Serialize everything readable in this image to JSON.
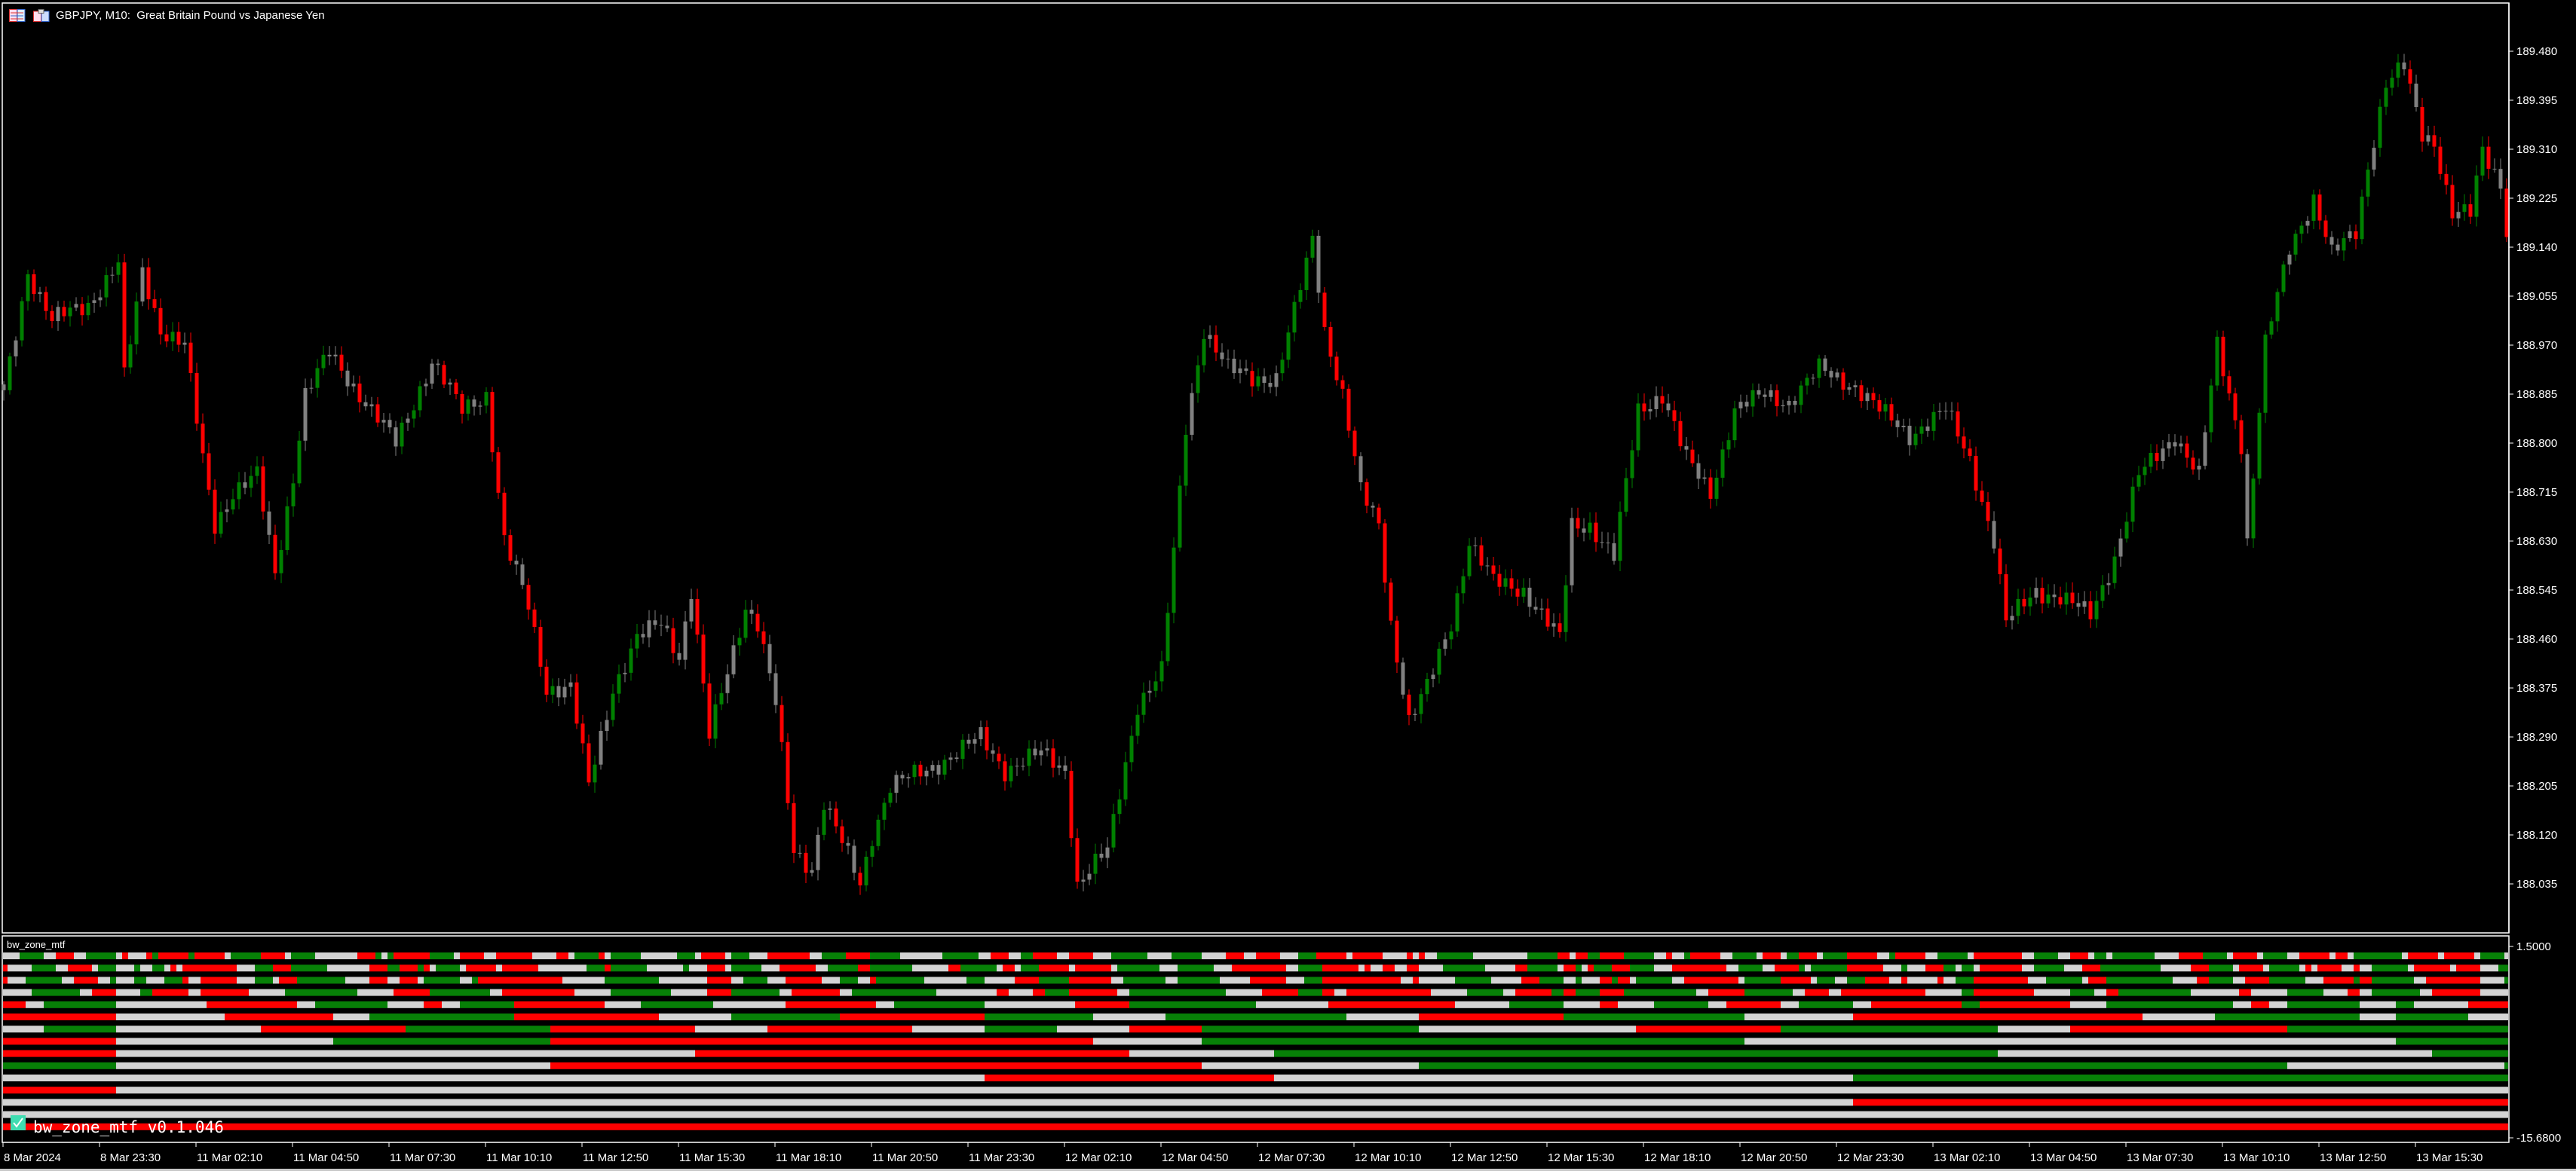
{
  "window": {
    "title": "GBPJPY, M10:  Great Britain Pound vs Japanese Yen",
    "icons": [
      "chart-list-icon",
      "chart-save-icon"
    ]
  },
  "colors": {
    "bull": "#008000",
    "bear": "#ff0000",
    "neutral": "#808080",
    "zone_green": "#078007",
    "zone_red": "#ff0000",
    "zone_gray": "#d3d3d3",
    "background": "#000000",
    "axis": "#ffffff"
  },
  "indicator": {
    "name": "bw_zone_mtf",
    "version_label": "bw_zone_mtf v0.1.046",
    "axis_top": "1.5000",
    "axis_bottom": "-15.6800",
    "rows": [
      "W3 G7 W9 R12 W14 G19 W20 R21 W24 R25 G26 R31 G32 R37 W38 G43 R47 W48 G52 W59 R62 G63 W64 G65 R71 G75 W76 R80 W82 R88 W92 R94 W95 G99 R100 W101 G106 W112 G115 W116 R120 W121 G124 W127 R134 W136 G140 R144 G149 W156 G162 W164 R167 W169 G171 R175 W177 R181 W184 G190 W194 G199 W203 R206 W208 R212 W215 G218 R223 W224 R229 W233 R234 W235 R236 W238 G244 W253 G258 R260 W261 R263 G265 R269 G274 W276 R277 W279 G280 R285 W287 G291 W292 R295 W296 G298 R301 W302 G306 R311 W313 G314 R319 W321 G326 W327 R335 W337 G341 W343 R346 W347 G349 W350 G357 W361 R365 G369 W370 R374 W375 G379 W381 R386 W387 R389 W390 G398 W399 R404 W405 R410 W411 G415 W416",
      "R1 W5 G9 W11 R15 W16 G19 W22 G23 W25 G27 W28 R29 W30 R39 W42 G45 R48 G54 W61 R64 G66 R69 G70 R71 W72 G76 W77 R82 W83 R89 W97 G100 R101 G107 W113 G114 W117 R120 W121 G126 W129 R135 W137 G142 R144 G151 W157 R159 G165 W166 R168 W169 G172 R177 W178 R184 W185 G192 W195 G201 W204 R213 W215 G219 R225 W226 R227 W229 R231 W233 R235 W239 G246 W251 R253 G258 W259 R261 G262 W263 R264 G267 R270 G274 W277 R286 W288 G292 W294 R298 G299 W300 G306 R312 W315 G316 W319 R322 G324 W325 G327 W328 R335 W337 G342 W345 R348 G358 W363 R366 G370 W371 R375 W376 G381 W382 R383 W384 R388 W390 R391 W393 G399 W400 R406 W407 R411 W414 G416",
      "R1 W4 G10 W12 R16 W18 G19 W22 G24 W27 G30 R31 W33 R39 W42 G45 W46 R49 G57 W61 R64 W66 R69 W70 G76 W78 G79 R93 W100 G109 W117 R121 W123 G127 W130 R136 W139 G142 W144 R145 G153 W160 G163 W168 R172 G177 R184 W186 G193 W195 G202 W207 R213 W216 G219 R232 W234 R235 W241 G247 W252 R255 G259 W261 G262 W265 R267 G268 R270 W271 G277 W279 R288 W289 G295 R300 W301 G304 W306 G309 R313 W315 R316 W321 R322 W324 G327 R336 W339 G345 W346 R349 G360 W364 R366 G370 W372 R376 G382 W385 R390 G391 R393 G400 W402 R411 W415 G416",
      "W5 G13 W15 R19 W23 G25 R31 W33 R41 W47 G59 W65 R71 G81 W83 R95 W101 G111 W117 R121 G129 W131 R139 W141 G155 W165 R167 W171 R173 G177 R185 W187 G203 W209 R215 G219 R221 W223 R237 W243 G249 W251 R257 G259 R261 G265 R269 G281 W283 R289 G297 W299 R303 W305 R319 W325 G327 R337 W343 G347 W349 R351 G363 W371 R373 W379 G385 W389 R391 W393 G401 W403 R411 W416",
      "R4 W7 G19 W34 R49 W52 G64 W70 R73 W76 G85 R100 W106 G118 W130 R145 W148 G163 W178 R187 G208 W220 R241 W250 G259 W265 R268 W274 G283 W286 R295 W298 G307 W310 R325 G328 R343 W349 G370 W373 R376 W379 G391 W397 G400 W409 R416",
      "R19 W37 R55 W61 G85 R109 W121 G139 R163 G181 W193 G223 W235 R259 G289 W307 R355 W367 G391 W397 G409 W416",
      "W7 G19 W43 R67 G91 R115 W127 R151 W163 G175 W187 R199 G235 W271 R295 G331 W343 R379 G416",
      "R19 W55 G91 R181 W199 G289 W397 G416",
      "R19 W115 R187 W211 G331 W403 G416",
      "G19 W91 R199 W235 G379 W415 G416",
      "W163 R211 W307 G416",
      "R19 W416",
      "W307 R416",
      "W416",
      "R416"
    ]
  },
  "chart_data": {
    "type": "candlestick",
    "symbol": "GBPJPY",
    "timeframe": "M10",
    "candle_count": 416,
    "ylim": [
      187.956,
      189.551
    ],
    "y_ticks": [
      "189.480",
      "189.395",
      "189.310",
      "189.225",
      "189.140",
      "189.055",
      "188.970",
      "188.885",
      "188.800",
      "188.715",
      "188.630",
      "188.545",
      "188.460",
      "188.375",
      "188.290",
      "188.205",
      "188.120",
      "188.035"
    ],
    "x_tick_every_candles": 16,
    "x_ticks": [
      "8 Mar 2024",
      "8 Mar 23:30",
      "11 Mar 02:10",
      "11 Mar 04:50",
      "11 Mar 07:30",
      "11 Mar 10:10",
      "11 Mar 12:50",
      "11 Mar 15:30",
      "11 Mar 18:10",
      "11 Mar 20:50",
      "11 Mar 23:30",
      "12 Mar 02:10",
      "12 Mar 04:50",
      "12 Mar 07:30",
      "12 Mar 10:10",
      "12 Mar 12:50",
      "12 Mar 15:30",
      "12 Mar 18:10",
      "12 Mar 20:50",
      "12 Mar 23:30",
      "13 Mar 02:10",
      "13 Mar 04:50",
      "13 Mar 07:30",
      "13 Mar 10:10",
      "13 Mar 12:50",
      "13 Mar 15:30"
    ],
    "close_keypoints": [
      [
        0,
        188.885
      ],
      [
        4,
        189.098
      ],
      [
        8,
        189.013
      ],
      [
        14,
        189.041
      ],
      [
        19,
        189.112
      ],
      [
        20,
        188.913
      ],
      [
        23,
        189.098
      ],
      [
        26,
        188.998
      ],
      [
        30,
        188.97
      ],
      [
        33,
        188.772
      ],
      [
        35,
        188.658
      ],
      [
        38,
        188.715
      ],
      [
        42,
        188.743
      ],
      [
        45,
        188.573
      ],
      [
        48,
        188.743
      ],
      [
        50,
        188.885
      ],
      [
        54,
        188.956
      ],
      [
        59,
        188.885
      ],
      [
        65,
        188.8
      ],
      [
        71,
        188.942
      ],
      [
        76,
        188.857
      ],
      [
        80,
        188.885
      ],
      [
        83,
        188.63
      ],
      [
        87,
        188.517
      ],
      [
        90,
        188.375
      ],
      [
        94,
        188.375
      ],
      [
        97,
        188.205
      ],
      [
        101,
        188.375
      ],
      [
        105,
        188.46
      ],
      [
        109,
        188.488
      ],
      [
        112,
        188.432
      ],
      [
        114,
        188.545
      ],
      [
        117,
        188.29
      ],
      [
        120,
        188.403
      ],
      [
        123,
        188.517
      ],
      [
        125,
        188.488
      ],
      [
        128,
        188.347
      ],
      [
        131,
        188.092
      ],
      [
        134,
        188.063
      ],
      [
        136,
        188.177
      ],
      [
        142,
        188.035
      ],
      [
        144,
        188.12
      ],
      [
        147,
        188.205
      ],
      [
        153,
        188.233
      ],
      [
        158,
        188.262
      ],
      [
        162,
        188.29
      ],
      [
        166,
        188.233
      ],
      [
        172,
        188.262
      ],
      [
        176,
        188.233
      ],
      [
        178,
        188.035
      ],
      [
        183,
        188.092
      ],
      [
        188,
        188.347
      ],
      [
        192,
        188.403
      ],
      [
        195,
        188.715
      ],
      [
        196,
        188.828
      ],
      [
        199,
        188.998
      ],
      [
        203,
        188.928
      ],
      [
        207,
        188.913
      ],
      [
        211,
        188.913
      ],
      [
        214,
        189.027
      ],
      [
        217,
        189.154
      ],
      [
        219,
        188.998
      ],
      [
        222,
        188.885
      ],
      [
        225,
        188.715
      ],
      [
        228,
        188.658
      ],
      [
        230,
        188.488
      ],
      [
        233,
        188.318
      ],
      [
        236,
        188.375
      ],
      [
        240,
        188.488
      ],
      [
        243,
        188.63
      ],
      [
        247,
        188.559
      ],
      [
        252,
        188.545
      ],
      [
        258,
        188.46
      ],
      [
        260,
        188.658
      ],
      [
        263,
        188.658
      ],
      [
        267,
        188.602
      ],
      [
        271,
        188.857
      ],
      [
        275,
        188.885
      ],
      [
        279,
        188.772
      ],
      [
        283,
        188.715
      ],
      [
        287,
        188.857
      ],
      [
        292,
        188.885
      ],
      [
        296,
        188.871
      ],
      [
        301,
        188.928
      ],
      [
        307,
        188.899
      ],
      [
        311,
        188.857
      ],
      [
        316,
        188.814
      ],
      [
        322,
        188.857
      ],
      [
        326,
        188.772
      ],
      [
        330,
        188.63
      ],
      [
        332,
        188.488
      ],
      [
        337,
        188.545
      ],
      [
        341,
        188.531
      ],
      [
        346,
        188.502
      ],
      [
        350,
        188.602
      ],
      [
        354,
        188.743
      ],
      [
        360,
        188.814
      ],
      [
        364,
        188.743
      ],
      [
        367,
        188.97
      ],
      [
        371,
        188.8
      ],
      [
        372,
        188.63
      ],
      [
        375,
        188.97
      ],
      [
        379,
        189.14
      ],
      [
        383,
        189.225
      ],
      [
        386,
        189.126
      ],
      [
        390,
        189.168
      ],
      [
        392,
        189.282
      ],
      [
        395,
        189.423
      ],
      [
        398,
        189.452
      ],
      [
        401,
        189.338
      ],
      [
        403,
        189.324
      ],
      [
        406,
        189.197
      ],
      [
        409,
        189.197
      ],
      [
        411,
        189.31
      ],
      [
        414,
        189.253
      ],
      [
        415,
        189.17
      ]
    ]
  }
}
